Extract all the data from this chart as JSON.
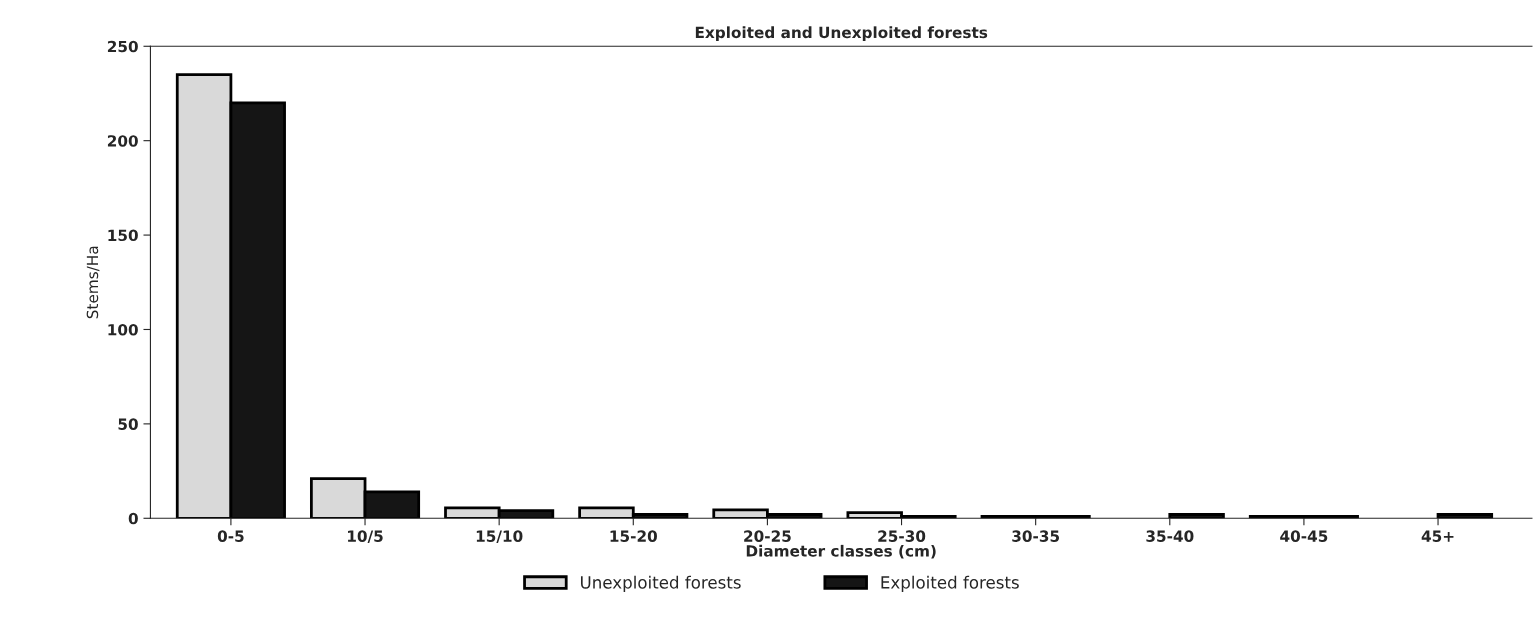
{
  "chart_data": {
    "type": "bar",
    "title": "Exploited and Unexploited forests",
    "xlabel": "Diameter classes (cm)",
    "ylabel": "Stems/Ha",
    "categories": [
      "0-5",
      "10/5",
      "15/10",
      "15-20",
      "20-25",
      "25-30",
      "30-35",
      "35-40",
      "40-45",
      "45+"
    ],
    "series": [
      {
        "name": "Unexploited forests",
        "color": "#d9d9d9",
        "values": [
          235,
          21,
          5.5,
          5.5,
          4.5,
          3,
          1,
          null,
          1,
          null
        ]
      },
      {
        "name": "Exploited forests",
        "color": "#151515",
        "values": [
          220,
          14,
          4,
          2,
          2,
          1,
          1,
          2,
          1,
          2
        ]
      }
    ],
    "ylim": [
      0,
      250
    ],
    "yticks": [
      0,
      50,
      100,
      150,
      200,
      250
    ],
    "grid": false,
    "legend": "bottom"
  }
}
